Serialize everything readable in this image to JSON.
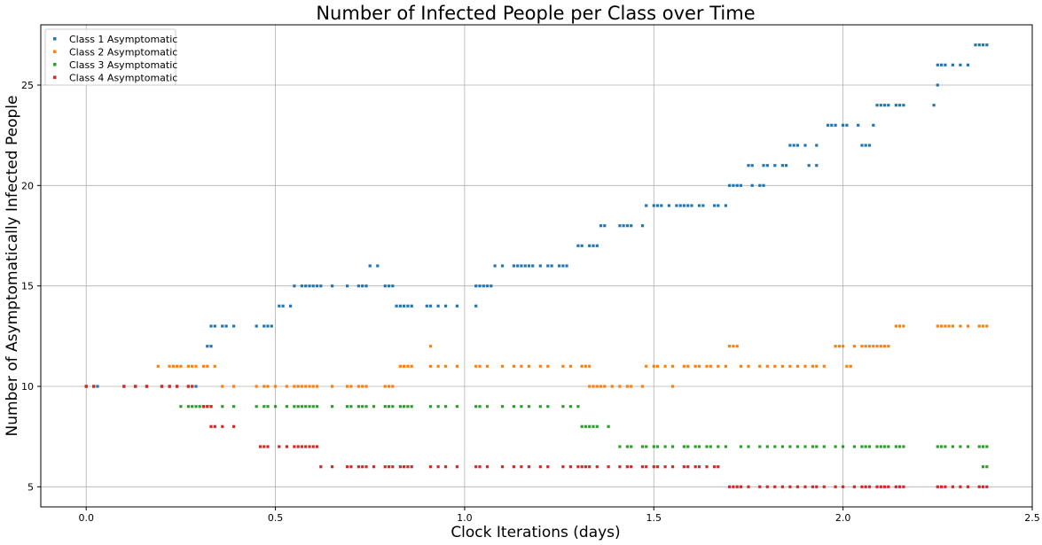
{
  "chart_data": {
    "type": "scatter",
    "title": "Number of Infected People per Class over Time",
    "xlabel": "Clock Iterations (days)",
    "ylabel": "Number of Asymptomatically Infected People",
    "xlim": [
      -0.12,
      2.5
    ],
    "ylim": [
      4.0,
      28.0
    ],
    "xticks": [
      0.0,
      0.5,
      1.0,
      1.5,
      2.0,
      2.5
    ],
    "xtick_labels": [
      "0.0",
      "0.5",
      "1.0",
      "1.5",
      "2.0",
      "2.5"
    ],
    "yticks": [
      5,
      10,
      15,
      20,
      25
    ],
    "ytick_labels": [
      "5",
      "10",
      "15",
      "20",
      "25"
    ],
    "grid": true,
    "legend_position": "top-left",
    "series": [
      {
        "name": "Class 1 Asymptomatic",
        "color": "#1f77b4",
        "segments": [
          {
            "y": 10,
            "x": [
              0.0,
              0.03,
              0.1,
              0.13,
              0.16,
              0.2,
              0.22,
              0.24,
              0.27,
              0.29
            ]
          },
          {
            "y": 12,
            "x": [
              0.32,
              0.33
            ]
          },
          {
            "y": 13,
            "x": [
              0.33,
              0.34,
              0.36,
              0.37,
              0.39,
              0.45,
              0.47,
              0.48,
              0.49
            ]
          },
          {
            "y": 14,
            "x": [
              0.51,
              0.52,
              0.54
            ]
          },
          {
            "y": 15,
            "x": [
              0.55,
              0.57,
              0.58,
              0.59,
              0.6,
              0.61,
              0.62,
              0.65,
              0.69,
              0.72,
              0.73,
              0.74,
              0.79,
              0.8,
              0.81
            ]
          },
          {
            "y": 16,
            "x": [
              0.75,
              0.77
            ]
          },
          {
            "y": 14,
            "x": [
              0.82,
              0.83,
              0.84,
              0.85,
              0.86,
              0.9,
              0.91,
              0.93,
              0.95,
              0.98
            ]
          },
          {
            "y": 14,
            "x": [
              1.03
            ]
          },
          {
            "y": 15,
            "x": [
              1.03,
              1.04,
              1.05,
              1.06,
              1.07
            ]
          },
          {
            "y": 16,
            "x": [
              1.08,
              1.1,
              1.13,
              1.14,
              1.15,
              1.16,
              1.17,
              1.18,
              1.2,
              1.22,
              1.23,
              1.25,
              1.26,
              1.27
            ]
          },
          {
            "y": 17,
            "x": [
              1.3,
              1.31,
              1.33,
              1.34,
              1.35
            ]
          },
          {
            "y": 18,
            "x": [
              1.36,
              1.37,
              1.41,
              1.42,
              1.43,
              1.44,
              1.47
            ]
          },
          {
            "y": 19,
            "x": [
              1.48,
              1.5,
              1.51,
              1.52,
              1.54,
              1.56,
              1.57,
              1.58,
              1.59,
              1.6,
              1.62,
              1.63,
              1.66,
              1.67,
              1.69
            ]
          },
          {
            "y": 20,
            "x": [
              1.7,
              1.71,
              1.72,
              1.73,
              1.76,
              1.78,
              1.79
            ]
          },
          {
            "y": 21,
            "x": [
              1.75,
              1.76,
              1.79,
              1.8,
              1.82,
              1.84,
              1.85
            ]
          },
          {
            "y": 22,
            "x": [
              1.86,
              1.87,
              1.88,
              1.9,
              1.93
            ]
          },
          {
            "y": 21,
            "x": [
              1.91,
              1.93
            ]
          },
          {
            "y": 23,
            "x": [
              1.96,
              1.97,
              1.98,
              2.0,
              2.01,
              2.04
            ]
          },
          {
            "y": 22,
            "x": [
              2.05,
              2.06,
              2.07
            ]
          },
          {
            "y": 23,
            "x": [
              2.08
            ]
          },
          {
            "y": 24,
            "x": [
              2.09,
              2.1,
              2.11,
              2.12,
              2.14,
              2.15,
              2.16
            ]
          },
          {
            "y": 24,
            "x": [
              2.24
            ]
          },
          {
            "y": 25,
            "x": [
              2.25
            ]
          },
          {
            "y": 26,
            "x": [
              2.25,
              2.26,
              2.27,
              2.29,
              2.31,
              2.33
            ]
          },
          {
            "y": 27,
            "x": [
              2.35,
              2.36,
              2.37,
              2.38
            ]
          }
        ]
      },
      {
        "name": "Class 2 Asymptomatic",
        "color": "#ff7f0e",
        "segments": [
          {
            "y": 10,
            "x": [
              0.0,
              0.02,
              0.1,
              0.13,
              0.16,
              0.2,
              0.22,
              0.24,
              0.27,
              0.28
            ]
          },
          {
            "y": 11,
            "x": [
              0.19,
              0.22,
              0.23,
              0.24,
              0.25,
              0.27,
              0.28,
              0.29,
              0.31,
              0.32,
              0.34
            ]
          },
          {
            "y": 10,
            "x": [
              0.36,
              0.39,
              0.45,
              0.47,
              0.48,
              0.5,
              0.53,
              0.55,
              0.56,
              0.57,
              0.58,
              0.59,
              0.6,
              0.61,
              0.65,
              0.69,
              0.7,
              0.72,
              0.73,
              0.74,
              0.79,
              0.8,
              0.81
            ]
          },
          {
            "y": 11,
            "x": [
              0.83,
              0.84,
              0.85,
              0.86,
              0.91,
              0.93,
              0.95,
              0.98,
              1.03,
              1.04,
              1.06,
              1.1,
              1.13,
              1.15,
              1.17,
              1.2,
              1.22,
              1.26,
              1.28,
              1.31,
              1.32,
              1.33
            ]
          },
          {
            "y": 12,
            "x": [
              0.91
            ]
          },
          {
            "y": 10,
            "x": [
              1.33,
              1.34,
              1.35,
              1.36,
              1.37,
              1.39,
              1.41,
              1.43,
              1.44,
              1.47
            ]
          },
          {
            "y": 11,
            "x": [
              1.48,
              1.5,
              1.51,
              1.53,
              1.55,
              1.58,
              1.59,
              1.61,
              1.62,
              1.64,
              1.65,
              1.67,
              1.69,
              1.73,
              1.75,
              1.78,
              1.8,
              1.82,
              1.84,
              1.86,
              1.88,
              1.9,
              1.92,
              1.93,
              1.95,
              2.01,
              2.02
            ]
          },
          {
            "y": 10,
            "x": [
              1.55
            ]
          },
          {
            "y": 12,
            "x": [
              1.7,
              1.71,
              1.72,
              1.98,
              1.99,
              2.0,
              2.03,
              2.05,
              2.06,
              2.07,
              2.08,
              2.09,
              2.1,
              2.11,
              2.12
            ]
          },
          {
            "y": 13,
            "x": [
              2.14,
              2.15,
              2.16,
              2.25,
              2.26,
              2.27,
              2.28,
              2.29,
              2.31,
              2.33,
              2.36,
              2.37,
              2.38
            ]
          }
        ]
      },
      {
        "name": "Class 3 Asymptomatic",
        "color": "#2ca02c",
        "segments": [
          {
            "y": 10,
            "x": [
              0.0,
              0.02,
              0.1,
              0.13,
              0.16,
              0.2,
              0.22,
              0.24
            ]
          },
          {
            "y": 9,
            "x": [
              0.25,
              0.27,
              0.28,
              0.29,
              0.3,
              0.31,
              0.32,
              0.33,
              0.36,
              0.39,
              0.45,
              0.47,
              0.48,
              0.5,
              0.53,
              0.55,
              0.56,
              0.57,
              0.58,
              0.59,
              0.6,
              0.61,
              0.65,
              0.69,
              0.7,
              0.72,
              0.73,
              0.74,
              0.76,
              0.79,
              0.8,
              0.81,
              0.83,
              0.84,
              0.85,
              0.86,
              0.91,
              0.93,
              0.95,
              0.98,
              1.03,
              1.04,
              1.06,
              1.1,
              1.13,
              1.15,
              1.17,
              1.2,
              1.22,
              1.26,
              1.28,
              1.3
            ]
          },
          {
            "y": 8,
            "x": [
              1.31,
              1.32,
              1.33,
              1.34,
              1.35,
              1.38
            ]
          },
          {
            "y": 7,
            "x": [
              1.41,
              1.43,
              1.44,
              1.47,
              1.48,
              1.5,
              1.51,
              1.53,
              1.55,
              1.58,
              1.59,
              1.61,
              1.62,
              1.64,
              1.65,
              1.67,
              1.69,
              1.73,
              1.75,
              1.78,
              1.8,
              1.82,
              1.84,
              1.86,
              1.88,
              1.9,
              1.92,
              1.93,
              1.95,
              1.98,
              2.0,
              2.03,
              2.05,
              2.06,
              2.07,
              2.09,
              2.1,
              2.11,
              2.12,
              2.14,
              2.15,
              2.16,
              2.25,
              2.26,
              2.27,
              2.29,
              2.31,
              2.33,
              2.36,
              2.37,
              2.38
            ]
          },
          {
            "y": 6,
            "x": [
              2.37,
              2.38
            ]
          }
        ]
      },
      {
        "name": "Class 4 Asymptomatic",
        "color": "#d62728",
        "segments": [
          {
            "y": 10,
            "x": [
              0.0,
              0.02,
              0.1,
              0.13,
              0.16,
              0.2,
              0.22,
              0.24,
              0.27,
              0.28
            ]
          },
          {
            "y": 9,
            "x": [
              0.31,
              0.32,
              0.33
            ]
          },
          {
            "y": 8,
            "x": [
              0.33,
              0.34,
              0.36,
              0.39
            ]
          },
          {
            "y": 7,
            "x": [
              0.46,
              0.47,
              0.48,
              0.51,
              0.53,
              0.55,
              0.56,
              0.57,
              0.58,
              0.59,
              0.6,
              0.61
            ]
          },
          {
            "y": 6,
            "x": [
              0.62,
              0.65,
              0.69,
              0.7,
              0.72,
              0.73,
              0.74,
              0.76,
              0.79,
              0.8,
              0.81,
              0.83,
              0.84,
              0.85,
              0.86,
              0.91,
              0.93,
              0.95,
              0.98,
              1.03,
              1.04,
              1.06,
              1.1,
              1.13,
              1.15,
              1.17,
              1.2,
              1.22,
              1.26,
              1.28,
              1.3,
              1.31,
              1.32,
              1.33,
              1.35,
              1.38,
              1.41,
              1.43,
              1.44,
              1.47,
              1.48,
              1.5,
              1.51,
              1.53,
              1.55,
              1.58,
              1.59,
              1.61,
              1.62,
              1.64,
              1.66,
              1.67
            ]
          },
          {
            "y": 5,
            "x": [
              1.7,
              1.71,
              1.72,
              1.73,
              1.75,
              1.78,
              1.8,
              1.82,
              1.84,
              1.86,
              1.88,
              1.9,
              1.92,
              1.93,
              1.95,
              1.98,
              2.0,
              2.03,
              2.05,
              2.06,
              2.07,
              2.09,
              2.1,
              2.11,
              2.12,
              2.14,
              2.15,
              2.16,
              2.25,
              2.26,
              2.27,
              2.29,
              2.31,
              2.33,
              2.36,
              2.37,
              2.38
            ]
          }
        ]
      }
    ]
  }
}
